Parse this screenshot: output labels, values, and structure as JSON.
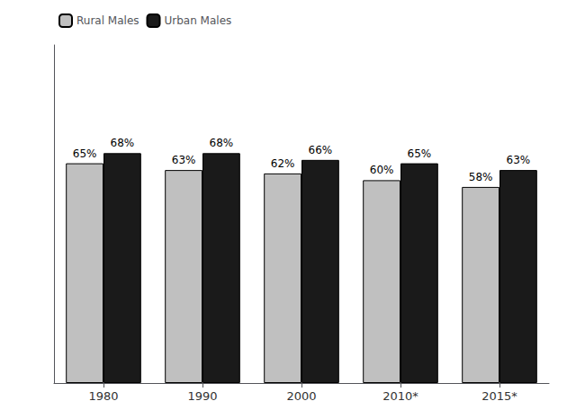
{
  "chart_data": {
    "type": "bar",
    "categories": [
      "1980",
      "1990",
      "2000",
      "2010*",
      "2015*"
    ],
    "series": [
      {
        "name": "Rural Males",
        "color": "#c0c0c0",
        "values": [
          65,
          63,
          62,
          60,
          58
        ],
        "value_labels": [
          "65%",
          "63%",
          "62%",
          "60%",
          "58%"
        ]
      },
      {
        "name": "Urban Males",
        "color": "#1a1a1a",
        "values": [
          68,
          68,
          66,
          65,
          63
        ],
        "value_labels": [
          "68%",
          "68%",
          "66%",
          "65%",
          "63%"
        ]
      }
    ],
    "ylim": [
      0,
      100
    ],
    "data_labels": true,
    "legend": "upper left",
    "grid": false,
    "tick_labels": "x"
  }
}
